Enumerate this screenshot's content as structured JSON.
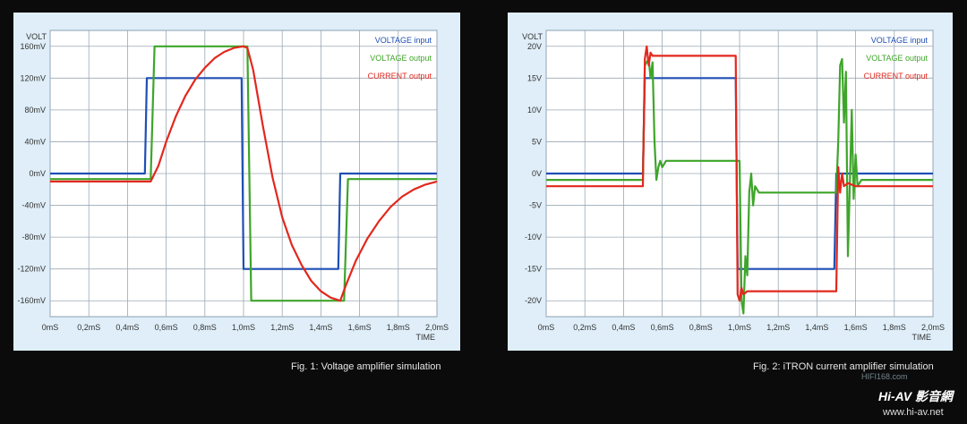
{
  "figures": [
    {
      "caption": "Fig. 1: Voltage amplifier simulation",
      "chart_data": {
        "type": "line",
        "y_axis_title": "VOLT",
        "x_axis_title": "TIME",
        "x_ticks": [
          "0mS",
          "0,2mS",
          "0,4mS",
          "0,6mS",
          "0,8mS",
          "1,0mS",
          "1,2mS",
          "1,4mS",
          "1,6mS",
          "1,8mS",
          "2,0mS"
        ],
        "y_ticks": [
          "160mV",
          "120mV",
          "80mV",
          "40mV",
          "0mV",
          "-40mV",
          "-80mV",
          "-120mV",
          "-160mV"
        ],
        "xlim": [
          0,
          2.0
        ],
        "ylim": [
          -180,
          180
        ],
        "y_tick_values": [
          160,
          120,
          80,
          40,
          0,
          -40,
          -80,
          -120,
          -160
        ],
        "grid": true,
        "legend_position": "top-right",
        "series": [
          {
            "name": "VOLTAGE input",
            "color": "#1f4fb4",
            "points": [
              [
                0,
                0
              ],
              [
                0.49,
                0
              ],
              [
                0.5,
                120
              ],
              [
                0.99,
                120
              ],
              [
                1.0,
                -120
              ],
              [
                1.49,
                -120
              ],
              [
                1.5,
                0
              ],
              [
                2.0,
                0
              ]
            ]
          },
          {
            "name": "VOLTAGE output",
            "color": "#3ea52a",
            "points": [
              [
                0,
                -7
              ],
              [
                0.52,
                -7
              ],
              [
                0.54,
                160
              ],
              [
                1.02,
                160
              ],
              [
                1.04,
                -160
              ],
              [
                1.52,
                -160
              ],
              [
                1.54,
                -7
              ],
              [
                2.0,
                -7
              ]
            ]
          },
          {
            "name": "CURRENT output",
            "color": "#e2281e",
            "points": [
              [
                0,
                -10
              ],
              [
                0.52,
                -10
              ],
              [
                0.56,
                10
              ],
              [
                0.6,
                40
              ],
              [
                0.65,
                72
              ],
              [
                0.7,
                98
              ],
              [
                0.75,
                118
              ],
              [
                0.8,
                133
              ],
              [
                0.85,
                145
              ],
              [
                0.9,
                153
              ],
              [
                0.95,
                158
              ],
              [
                1.0,
                160
              ],
              [
                1.02,
                158
              ],
              [
                1.05,
                130
              ],
              [
                1.1,
                60
              ],
              [
                1.15,
                -5
              ],
              [
                1.2,
                -55
              ],
              [
                1.25,
                -90
              ],
              [
                1.3,
                -115
              ],
              [
                1.35,
                -135
              ],
              [
                1.4,
                -148
              ],
              [
                1.45,
                -156
              ],
              [
                1.5,
                -160
              ],
              [
                1.53,
                -140
              ],
              [
                1.58,
                -110
              ],
              [
                1.64,
                -82
              ],
              [
                1.7,
                -60
              ],
              [
                1.76,
                -42
              ],
              [
                1.82,
                -29
              ],
              [
                1.88,
                -20
              ],
              [
                1.94,
                -14
              ],
              [
                2.0,
                -10
              ]
            ]
          }
        ]
      }
    },
    {
      "caption": "Fig. 2: iTRON current amplifier simulation",
      "chart_data": {
        "type": "line",
        "y_axis_title": "VOLT",
        "x_axis_title": "TIME",
        "x_ticks": [
          "0mS",
          "0,2mS",
          "0,4mS",
          "0,6mS",
          "0,8mS",
          "1,0mS",
          "1,2mS",
          "1,4mS",
          "1,6mS",
          "1,8mS",
          "2,0mS"
        ],
        "y_ticks": [
          "20V",
          "15V",
          "10V",
          "5V",
          "0V",
          "-5V",
          "-10V",
          "-15V",
          "-20V"
        ],
        "xlim": [
          0,
          2.0
        ],
        "ylim": [
          -22.5,
          22.5
        ],
        "y_tick_values": [
          20,
          15,
          10,
          5,
          0,
          -5,
          -10,
          -15,
          -20
        ],
        "grid": true,
        "legend_position": "top-right",
        "series": [
          {
            "name": "VOLTAGE input",
            "color": "#1f4fb4",
            "points": [
              [
                0,
                0
              ],
              [
                0.5,
                0
              ],
              [
                0.51,
                15
              ],
              [
                0.98,
                15
              ],
              [
                0.99,
                -15
              ],
              [
                1.49,
                -15
              ],
              [
                1.5,
                0
              ],
              [
                2.0,
                0
              ]
            ]
          },
          {
            "name": "VOLTAGE output",
            "color": "#3ea52a",
            "points": [
              [
                0,
                -1
              ],
              [
                0.5,
                -1
              ],
              [
                0.51,
                17
              ],
              [
                0.53,
                18
              ],
              [
                0.54,
                15
              ],
              [
                0.55,
                17.5
              ],
              [
                0.56,
                5
              ],
              [
                0.57,
                -1
              ],
              [
                0.58,
                1
              ],
              [
                0.59,
                2
              ],
              [
                0.6,
                1
              ],
              [
                0.62,
                2
              ],
              [
                0.98,
                2
              ],
              [
                1.0,
                2
              ],
              [
                1.01,
                -20
              ],
              [
                1.02,
                -22
              ],
              [
                1.03,
                -13
              ],
              [
                1.04,
                -16
              ],
              [
                1.05,
                -3
              ],
              [
                1.06,
                0
              ],
              [
                1.07,
                -5
              ],
              [
                1.08,
                -2
              ],
              [
                1.1,
                -3
              ],
              [
                1.5,
                -3
              ],
              [
                1.51,
                5
              ],
              [
                1.52,
                17
              ],
              [
                1.53,
                18
              ],
              [
                1.54,
                8
              ],
              [
                1.55,
                16
              ],
              [
                1.56,
                -13
              ],
              [
                1.57,
                -2
              ],
              [
                1.58,
                10
              ],
              [
                1.59,
                -4
              ],
              [
                1.6,
                3
              ],
              [
                1.61,
                -2
              ],
              [
                1.63,
                -1
              ],
              [
                2.0,
                -1
              ]
            ]
          },
          {
            "name": "CURRENT output",
            "color": "#e2281e",
            "points": [
              [
                0,
                -2
              ],
              [
                0.5,
                -2
              ],
              [
                0.51,
                18
              ],
              [
                0.52,
                20
              ],
              [
                0.53,
                17
              ],
              [
                0.54,
                19
              ],
              [
                0.55,
                18.5
              ],
              [
                0.98,
                18.5
              ],
              [
                0.99,
                -19
              ],
              [
                1.0,
                -20
              ],
              [
                1.01,
                -18
              ],
              [
                1.02,
                -19
              ],
              [
                1.04,
                -18.5
              ],
              [
                1.5,
                -18.5
              ],
              [
                1.51,
                1
              ],
              [
                1.52,
                -3
              ],
              [
                1.53,
                0
              ],
              [
                1.54,
                -2
              ],
              [
                1.56,
                -1.5
              ],
              [
                1.6,
                -2
              ],
              [
                2.0,
                -2
              ]
            ]
          }
        ]
      }
    }
  ],
  "watermark": {
    "brand": "Hi-AV 影音網",
    "url": "www.hi-av.net",
    "small": "HIFI168.com"
  }
}
